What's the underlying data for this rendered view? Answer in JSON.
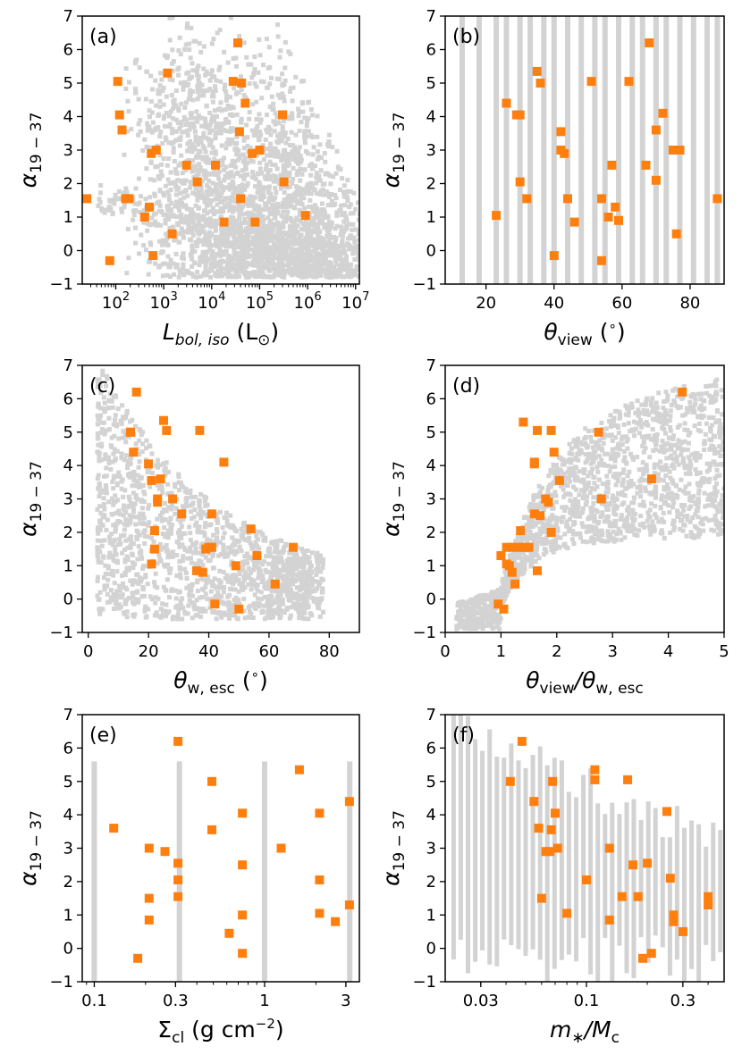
{
  "colors": {
    "model": "#d3d3d3",
    "observed": "#ff7f0e",
    "frame": "#000000"
  },
  "chart_data": [
    {
      "type": "scatter",
      "panel": "(a)",
      "xlabel": "L_bol,iso (L⊙)",
      "xlabel_main": "L",
      "xlabel_sub": "bol, iso",
      "xlabel_tail": " (L",
      "xlabel_tail_sub": "⊙",
      "xlabel_close": ")",
      "ylabel": "α19−37",
      "ylabel_main": "α",
      "ylabel_sub": "19 − 37",
      "xscale": "log",
      "xlim": [
        20,
        12000000
      ],
      "ylim": [
        -1,
        7
      ],
      "xticks": [
        100,
        1000,
        10000,
        100000,
        1000000,
        10000000
      ],
      "xtick_bases": [
        "10",
        "10",
        "10",
        "10",
        "10",
        "10"
      ],
      "xtick_exps": [
        "2",
        "3",
        "4",
        "5",
        "6",
        "7"
      ],
      "yticks": [
        -1,
        0,
        1,
        2,
        3,
        4,
        5,
        6,
        7
      ],
      "ytick_labels": [
        "−1",
        "0",
        "1",
        "2",
        "3",
        "4",
        "5",
        "6",
        "7"
      ],
      "observed_x": [
        25,
        75,
        110,
        120,
        135,
        160,
        180,
        190,
        400,
        500,
        550,
        600,
        700,
        1200,
        1500,
        3000,
        5000,
        12000,
        18000,
        28000,
        35000,
        38000,
        40000,
        42000,
        50000,
        70000,
        80000,
        100000,
        300000,
        320000,
        900000
      ],
      "observed_y": [
        1.55,
        -0.3,
        5.05,
        4.05,
        3.6,
        1.55,
        1.55,
        1.55,
        1.0,
        1.3,
        2.9,
        -0.15,
        3.0,
        5.3,
        0.5,
        2.55,
        2.05,
        2.55,
        0.85,
        5.05,
        6.2,
        3.55,
        1.55,
        5.0,
        4.4,
        2.9,
        0.85,
        3.0,
        4.05,
        2.05,
        1.05
      ],
      "model_kind": "fans"
    },
    {
      "type": "scatter",
      "panel": "(b)",
      "xlabel": "θview (°)",
      "xlabel_main": "θ",
      "xlabel_sub": "view",
      "xlabel_tail": " (",
      "xlabel_tail_sup": "∘",
      "xlabel_close": ")",
      "ylabel": "α19−37",
      "ylabel_main": "α",
      "ylabel_sub": "19 − 37",
      "xscale": "linear",
      "xlim": [
        8,
        90
      ],
      "ylim": [
        -1,
        7
      ],
      "xticks": [
        20,
        40,
        60,
        80
      ],
      "xtick_labels": [
        "20",
        "40",
        "60",
        "80"
      ],
      "yticks": [
        -1,
        0,
        1,
        2,
        3,
        4,
        5,
        6,
        7
      ],
      "ytick_labels": [
        "−1",
        "0",
        "1",
        "2",
        "3",
        "4",
        "5",
        "6",
        "7"
      ],
      "observed_x": [
        23,
        26,
        29,
        30,
        30,
        32,
        35,
        36,
        40,
        42,
        42,
        43,
        44,
        46,
        51,
        54,
        54,
        56,
        57,
        58,
        59,
        62,
        67,
        68,
        70,
        70,
        72,
        75,
        76,
        77,
        88
      ],
      "observed_y": [
        1.05,
        4.4,
        4.05,
        2.05,
        4.05,
        1.55,
        5.35,
        5.0,
        -0.15,
        3.55,
        3.0,
        2.9,
        1.55,
        0.85,
        5.05,
        -0.3,
        1.55,
        1.0,
        2.55,
        1.3,
        0.9,
        5.05,
        2.55,
        6.2,
        3.6,
        2.1,
        4.1,
        3.0,
        0.5,
        3.0,
        1.55
      ],
      "model_kind": "columns",
      "model_columns": [
        13,
        18,
        23,
        26,
        30,
        33,
        37,
        40,
        44,
        48,
        52,
        55,
        59,
        63,
        66,
        70,
        73,
        77,
        81,
        85,
        88
      ]
    },
    {
      "type": "scatter",
      "panel": "(c)",
      "xlabel": "θw,esc (°)",
      "xlabel_main": "θ",
      "xlabel_sub": "w, esc",
      "xlabel_tail": " (",
      "xlabel_tail_sup": "∘",
      "xlabel_close": ")",
      "ylabel": "α19−37",
      "ylabel_main": "α",
      "ylabel_sub": "19 − 37",
      "xscale": "linear",
      "xlim": [
        -2,
        90
      ],
      "ylim": [
        -1,
        7
      ],
      "xticks": [
        0,
        20,
        40,
        60,
        80
      ],
      "xtick_labels": [
        "0",
        "20",
        "40",
        "60",
        "80"
      ],
      "yticks": [
        -1,
        0,
        1,
        2,
        3,
        4,
        5,
        6,
        7
      ],
      "ytick_labels": [
        "−1",
        "0",
        "1",
        "2",
        "3",
        "4",
        "5",
        "6",
        "7"
      ],
      "observed_x": [
        14,
        15,
        16,
        20,
        21,
        21,
        22,
        22,
        23,
        23,
        24,
        25,
        26,
        28,
        31,
        36,
        37,
        38,
        39,
        40,
        41,
        41,
        42,
        45,
        49,
        50,
        54,
        56,
        62,
        68,
        14
      ],
      "observed_y": [
        5.0,
        4.4,
        6.2,
        4.05,
        3.55,
        1.05,
        2.05,
        1.5,
        2.9,
        3.0,
        3.6,
        5.35,
        5.05,
        3.0,
        2.55,
        0.85,
        5.05,
        0.8,
        1.5,
        1.55,
        1.55,
        2.55,
        -0.15,
        4.1,
        1.0,
        -0.3,
        2.1,
        1.3,
        0.45,
        1.55,
        5.0
      ],
      "model_kind": "decay"
    },
    {
      "type": "scatter",
      "panel": "(d)",
      "xlabel": "θview/θw,esc",
      "xlabel_main": "θ",
      "xlabel_sub": "view",
      "xlabel_tail": "/θ",
      "xlabel_tail_sub": "w, esc",
      "xlabel_close": "",
      "ylabel": "α19−37",
      "ylabel_main": "α",
      "ylabel_sub": "19 − 37",
      "xscale": "linear",
      "xlim": [
        0,
        5
      ],
      "ylim": [
        -1,
        7
      ],
      "xticks": [
        0,
        1,
        2,
        3,
        4,
        5
      ],
      "xtick_labels": [
        "0",
        "1",
        "2",
        "3",
        "4",
        "5"
      ],
      "yticks": [
        -1,
        0,
        1,
        2,
        3,
        4,
        5,
        6,
        7
      ],
      "ytick_labels": [
        "−1",
        "0",
        "1",
        "2",
        "3",
        "4",
        "5",
        "6",
        "7"
      ],
      "observed_x": [
        0.95,
        1.0,
        1.05,
        1.1,
        1.1,
        1.15,
        1.2,
        1.25,
        1.3,
        1.35,
        1.4,
        1.4,
        1.45,
        1.5,
        1.6,
        1.6,
        1.65,
        1.65,
        1.7,
        1.8,
        1.85,
        1.9,
        1.95,
        2.05,
        2.75,
        2.8,
        3.7,
        4.25,
        1.2,
        1.6,
        1.9
      ],
      "observed_y": [
        -0.15,
        1.3,
        -0.3,
        1.05,
        1.55,
        1.0,
        0.8,
        0.45,
        1.55,
        2.05,
        1.55,
        5.3,
        1.55,
        1.55,
        2.55,
        4.05,
        5.05,
        0.85,
        2.5,
        3.0,
        2.9,
        5.05,
        4.4,
        3.55,
        5.0,
        3.0,
        3.6,
        6.2,
        1.55,
        4.1,
        2.0
      ],
      "model_kind": "fan"
    },
    {
      "type": "scatter",
      "panel": "(e)",
      "xlabel": "Σcl (g cm−2)",
      "xlabel_main": "Σ",
      "xlabel_sub": "cl",
      "xlabel_tail": " (g cm",
      "xlabel_tail_sup": "−2",
      "xlabel_close": ")",
      "ylabel": "α19−37",
      "ylabel_main": "α",
      "ylabel_sub": "19 − 37",
      "xscale": "log",
      "xlim": [
        0.085,
        3.6
      ],
      "ylim": [
        -1,
        7
      ],
      "xticks": [
        0.1,
        0.3,
        1,
        3
      ],
      "xtick_labels": [
        "0.1",
        "0.3",
        "1",
        "3"
      ],
      "yticks": [
        -1,
        0,
        1,
        2,
        3,
        4,
        5,
        6,
        7
      ],
      "ytick_labels": [
        "−1",
        "0",
        "1",
        "2",
        "3",
        "4",
        "5",
        "6",
        "7"
      ],
      "observed_x": [
        0.13,
        0.18,
        0.21,
        0.21,
        0.21,
        0.26,
        0.31,
        0.31,
        0.31,
        0.31,
        0.49,
        0.49,
        0.62,
        0.74,
        0.74,
        0.74,
        0.74,
        1.25,
        1.6,
        2.1,
        2.1,
        2.1,
        2.6,
        3.15,
        3.15
      ],
      "observed_y": [
        3.6,
        -0.3,
        3.0,
        1.5,
        0.85,
        2.9,
        6.2,
        2.55,
        2.05,
        1.55,
        5.0,
        3.55,
        0.45,
        4.05,
        2.5,
        1.0,
        -0.15,
        3.0,
        5.35,
        4.05,
        2.05,
        1.05,
        0.8,
        4.4,
        1.3
      ],
      "model_kind": "columns",
      "model_columns": [
        0.1,
        0.316,
        1.0,
        3.16
      ]
    },
    {
      "type": "scatter",
      "panel": "(f)",
      "xlabel": "m*/Mc",
      "xlabel_main": "m",
      "xlabel_sub": "∗",
      "xlabel_tail": "/M",
      "xlabel_tail_sub": "c",
      "xlabel_close": "",
      "ylabel": "α19−37",
      "ylabel_main": "α",
      "ylabel_sub": "19 − 37",
      "xscale": "log",
      "xlim": [
        0.02,
        0.48
      ],
      "ylim": [
        -1,
        7
      ],
      "xticks": [
        0.03,
        0.1,
        0.3
      ],
      "xtick_labels": [
        "0.03",
        "0.1",
        "0.3"
      ],
      "yticks": [
        -1,
        0,
        1,
        2,
        3,
        4,
        5,
        6,
        7
      ],
      "ytick_labels": [
        "−1",
        "0",
        "1",
        "2",
        "3",
        "4",
        "5",
        "6",
        "7"
      ],
      "observed_x": [
        0.042,
        0.048,
        0.055,
        0.058,
        0.06,
        0.063,
        0.067,
        0.068,
        0.07,
        0.072,
        0.08,
        0.1,
        0.11,
        0.11,
        0.13,
        0.13,
        0.15,
        0.16,
        0.17,
        0.18,
        0.19,
        0.2,
        0.21,
        0.25,
        0.26,
        0.27,
        0.27,
        0.3,
        0.4,
        0.4,
        0.066
      ],
      "observed_y": [
        5.0,
        6.2,
        4.4,
        3.6,
        1.5,
        2.9,
        3.55,
        5.0,
        4.05,
        3.0,
        1.05,
        2.05,
        5.05,
        5.35,
        3.0,
        0.85,
        1.55,
        5.05,
        2.5,
        1.55,
        -0.3,
        2.55,
        -0.15,
        4.1,
        2.1,
        0.8,
        1.0,
        0.5,
        1.55,
        1.3,
        2.9
      ],
      "model_kind": "log_columns"
    }
  ]
}
